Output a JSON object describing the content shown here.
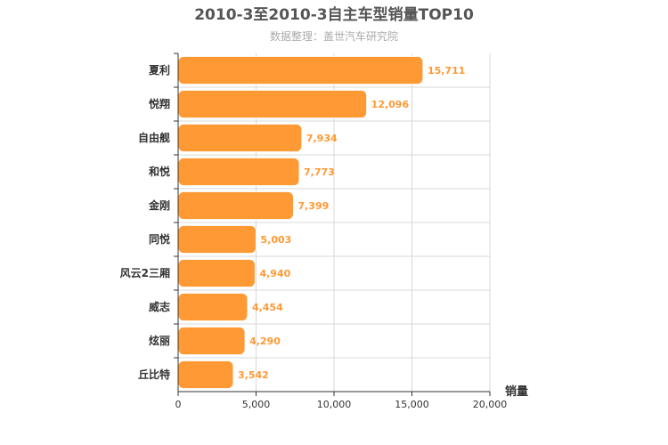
{
  "chart_data": {
    "type": "bar",
    "orientation": "horizontal",
    "title": "2010-3至2010-3自主车型销量TOP10",
    "subtitle": "数据整理：盖世汽车研究院",
    "categories": [
      "夏利",
      "悦翔",
      "自由舰",
      "和悦",
      "金刚",
      "同悦",
      "风云2三厢",
      "威志",
      "炫丽",
      "丘比特"
    ],
    "values": [
      15711,
      12096,
      7934,
      7773,
      7399,
      5003,
      4940,
      4454,
      4290,
      3542
    ],
    "value_labels": [
      "15,711",
      "12,096",
      "7,934",
      "7,773",
      "7,399",
      "5,003",
      "4,940",
      "4,454",
      "4,290",
      "3,542"
    ],
    "xlabel": "销量",
    "ylabel": "",
    "xlim": [
      0,
      20000
    ],
    "xticks": [
      0,
      5000,
      10000,
      15000,
      20000
    ],
    "xtick_labels": [
      "0",
      "5,000",
      "10,000",
      "15,000",
      "20,000"
    ],
    "grid": true,
    "legend": "none",
    "colors": {
      "bar": "#FF9933",
      "bar_stroke": "#ffffff",
      "data_label": "#FF9933",
      "grid": "#d8d8d8",
      "axis": "#333333"
    }
  }
}
